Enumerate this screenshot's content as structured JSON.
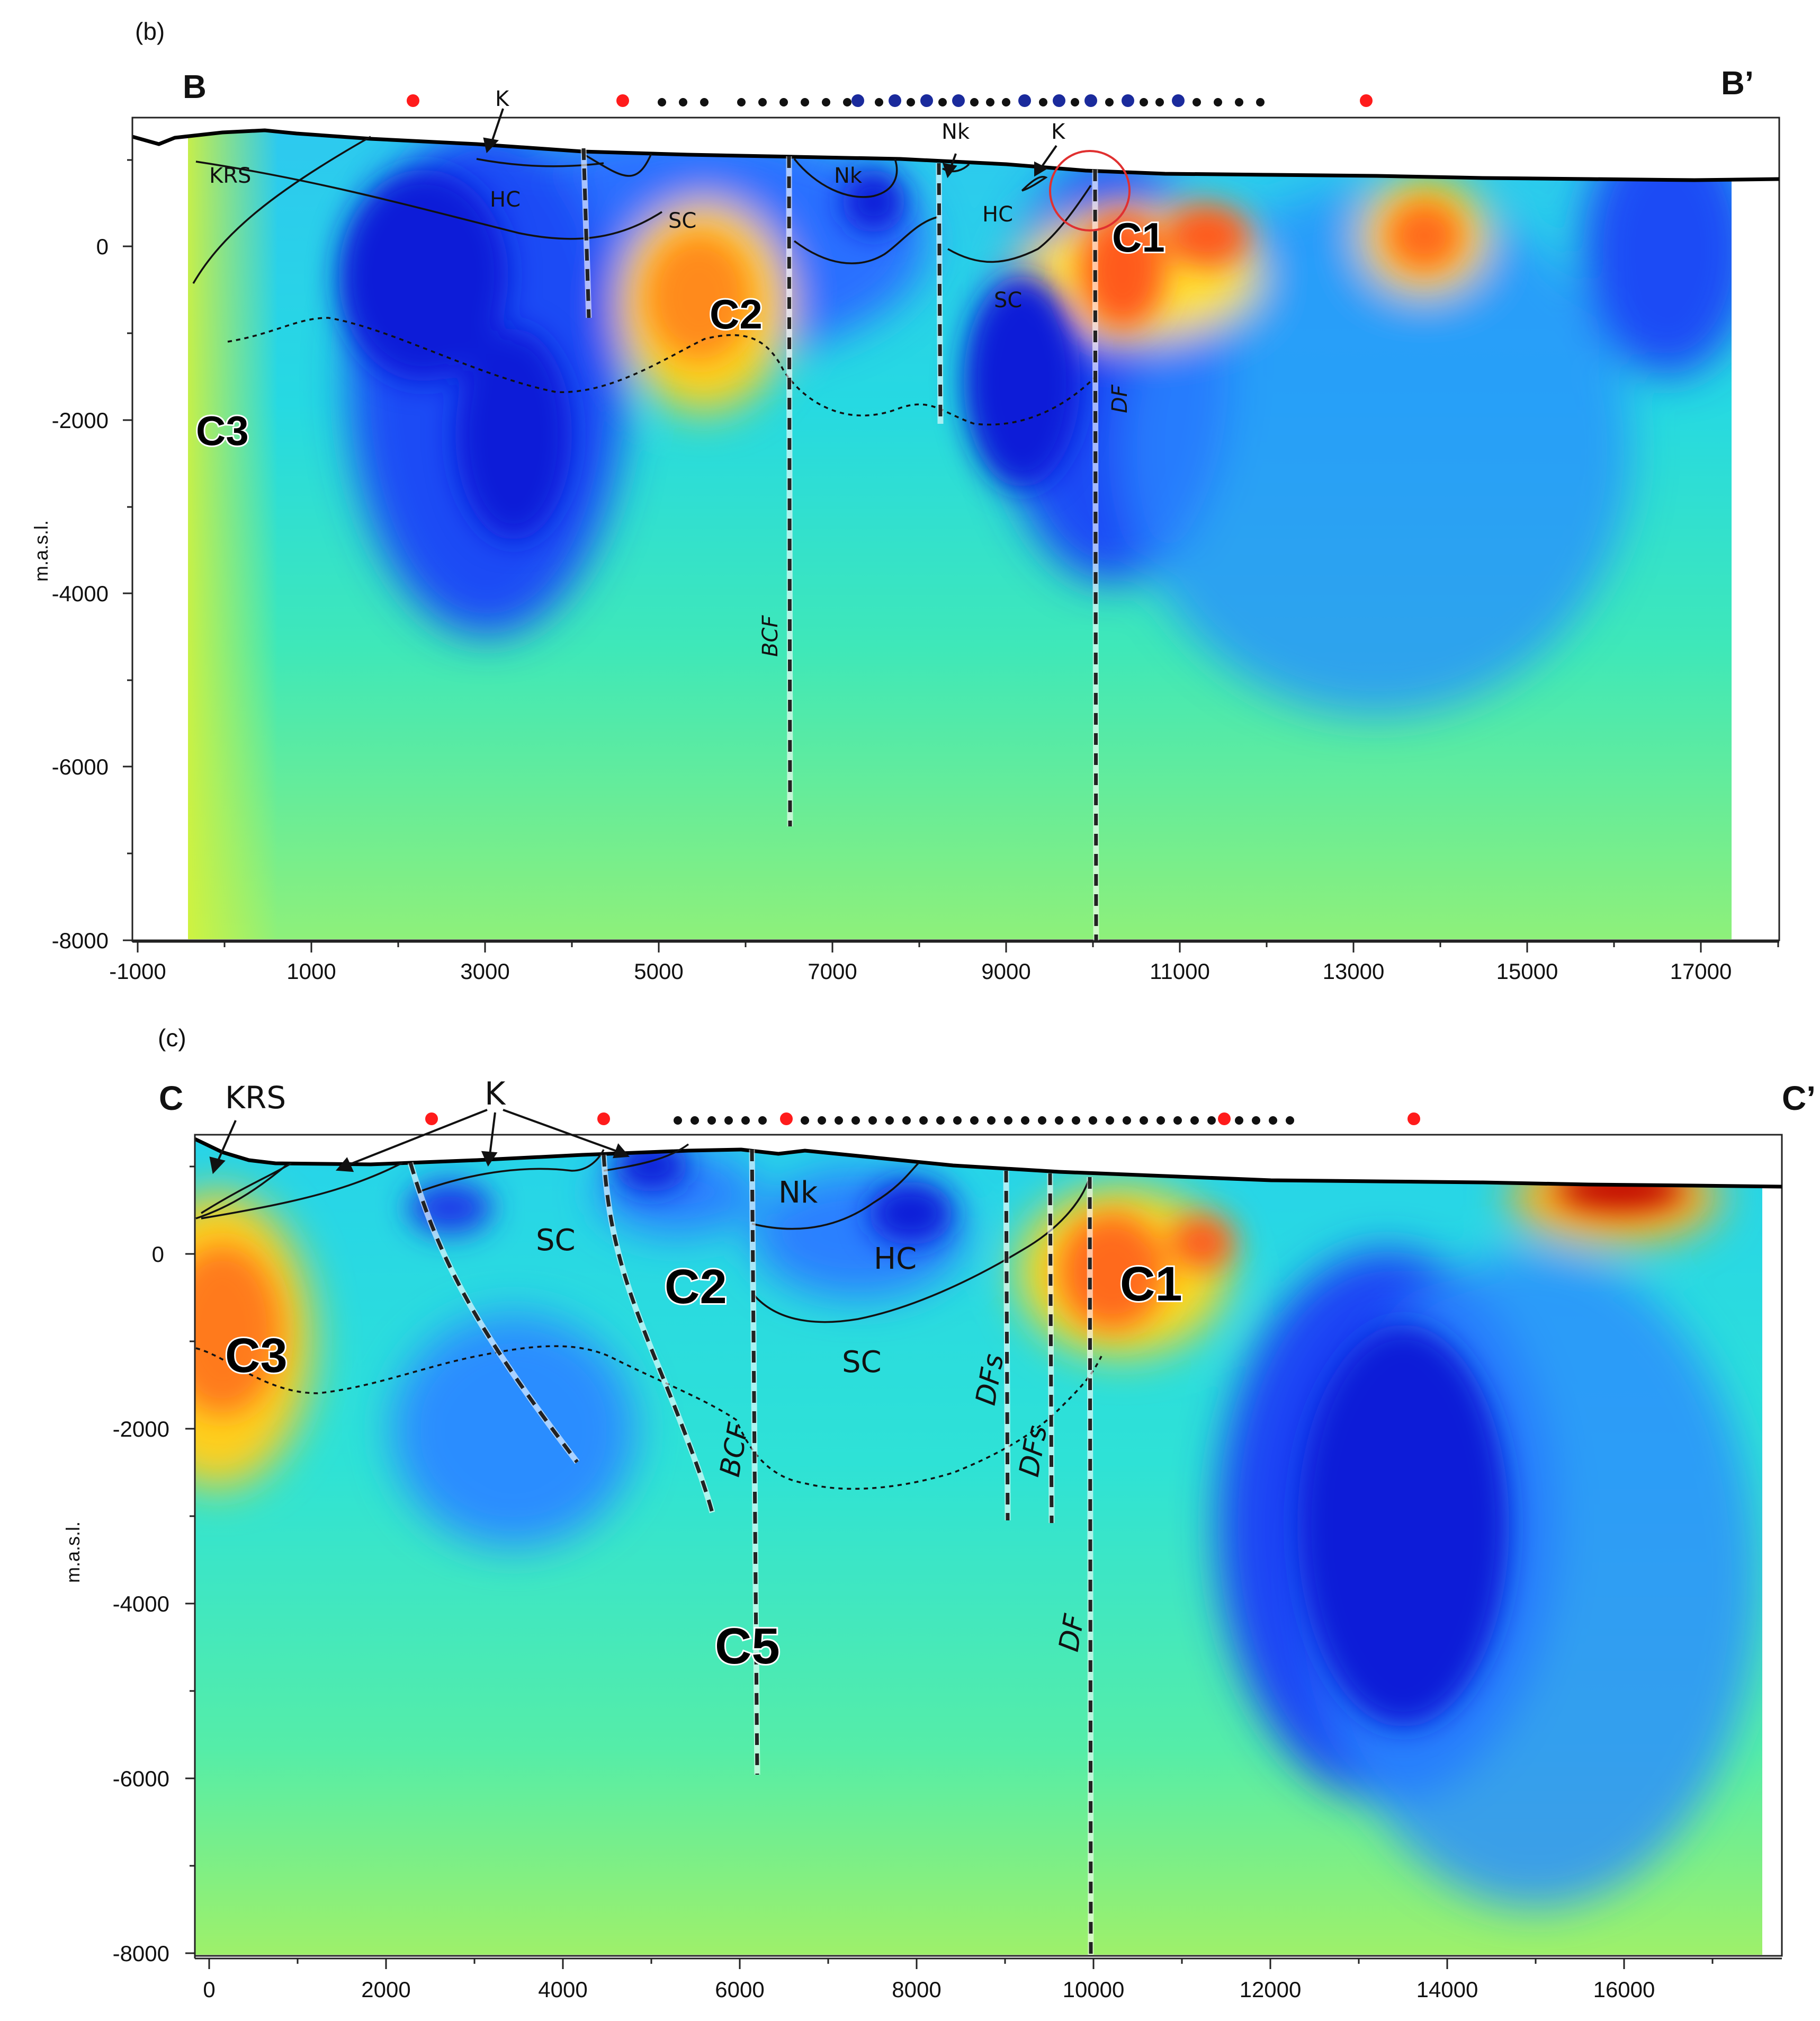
{
  "colors": {
    "deep_blue": "#0a1fd8",
    "blue": "#1c4dff",
    "sky": "#2fa6ff",
    "cyan": "#22d6ee",
    "aqua": "#29f0cf",
    "green": "#5cf09a",
    "lime": "#c3f23a",
    "yellow": "#ffd21a",
    "orange": "#ff7f1a",
    "red": "#e8261a",
    "dark_red": "#b00000",
    "station_red": "#ff1b1b",
    "station_black": "#111111",
    "station_blue": "#1a2a9c",
    "highlight_circle": "#e03030"
  },
  "panel_b": {
    "panel_label": "(b)",
    "start_label": "B",
    "end_label": "B’",
    "y_axis_title": "m.a.s.l.",
    "x_ticks": [
      "-1000",
      "1000",
      "3000",
      "5000",
      "7000",
      "9000",
      "11000",
      "13000",
      "15000",
      "17000"
    ],
    "y_ticks": [
      "0",
      "-2000",
      "-4000",
      "-6000",
      "-8000"
    ],
    "unit_labels": [
      "KRS",
      "HC",
      "SC",
      "Nk",
      "HC",
      "SC"
    ],
    "callout_labels": [
      "K",
      "Nk",
      "K"
    ],
    "fault_labels": [
      "BCF",
      "DF"
    ],
    "anomalies": [
      "C1",
      "C2",
      "C3"
    ]
  },
  "panel_c": {
    "panel_label": "(c)",
    "start_label": "C",
    "end_label": "C’",
    "y_axis_title": "m.a.s.l.",
    "x_ticks": [
      "0",
      "2000",
      "4000",
      "6000",
      "8000",
      "10000",
      "12000",
      "14000",
      "16000"
    ],
    "y_ticks": [
      "0",
      "-2000",
      "-4000",
      "-6000",
      "-8000"
    ],
    "unit_labels": [
      "KRS",
      "SC",
      "Nk",
      "HC",
      "SC"
    ],
    "callout_labels": [
      "K"
    ],
    "fault_labels": [
      "BCF",
      "DFs",
      "DFs",
      "DF"
    ],
    "anomalies": [
      "C1",
      "C2",
      "C3",
      "C5"
    ]
  }
}
